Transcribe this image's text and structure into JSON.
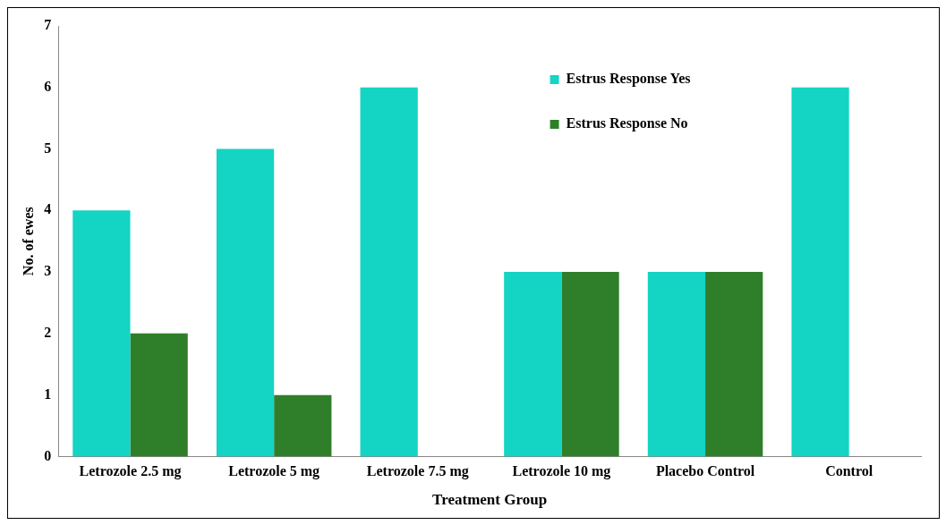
{
  "chart_data": {
    "type": "bar",
    "xlabel": "Treatment Group",
    "ylabel": "No. of ewes",
    "categories": [
      "Letrozole 2.5 mg",
      "Letrozole 5 mg",
      "Letrozole 7.5 mg",
      "Letrozole 10 mg",
      "Placebo Control",
      "Control"
    ],
    "series": [
      {
        "name": "Estrus Response Yes",
        "color": "#14d4c4",
        "values": [
          4,
          5,
          6,
          3,
          3,
          6
        ]
      },
      {
        "name": "Estrus Response No",
        "color": "#2f7f2a",
        "values": [
          2,
          1,
          0,
          3,
          3,
          0
        ]
      }
    ],
    "ylim": [
      0,
      7
    ],
    "yticks": [
      0,
      1,
      2,
      3,
      4,
      5,
      6,
      7
    ],
    "grid": false,
    "legend": "top"
  }
}
